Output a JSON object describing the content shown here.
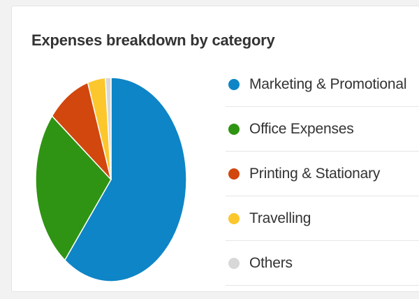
{
  "chart_data": {
    "type": "pie",
    "title": "Expenses breakdown by category",
    "legend": "right",
    "slices": [
      {
        "label": "Marketing & Promotional",
        "value": 60.5,
        "color": "#0e85c6"
      },
      {
        "label": "Office Expenses",
        "value": 25.2,
        "color": "#2f9413"
      },
      {
        "label": "Printing & Stationary",
        "value": 9.3,
        "color": "#d1470e"
      },
      {
        "label": "Travelling",
        "value": 3.8,
        "color": "#fbc72d"
      },
      {
        "label": "Others",
        "value": 1.2,
        "color": "#d8d8d8"
      }
    ]
  }
}
